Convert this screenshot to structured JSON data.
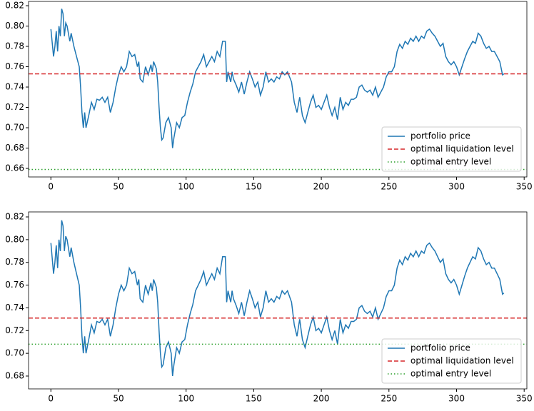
{
  "chart_data": [
    {
      "type": "line",
      "x": [
        0,
        2,
        3,
        4,
        5,
        6,
        7,
        8,
        9,
        10,
        11,
        12,
        14,
        15,
        17,
        19,
        21,
        22,
        23,
        24,
        25,
        26,
        28,
        30,
        32,
        34,
        36,
        38,
        40,
        42,
        44,
        46,
        48,
        50,
        52,
        54,
        56,
        58,
        60,
        62,
        64,
        65,
        66,
        68,
        70,
        72,
        74,
        75,
        76,
        78,
        79,
        80,
        81,
        82,
        83,
        85,
        87,
        89,
        90,
        91,
        93,
        95,
        97,
        99,
        101,
        103,
        105,
        107,
        109,
        111,
        113,
        115,
        117,
        119,
        121,
        123,
        125,
        127,
        129,
        130,
        131,
        133,
        134,
        135,
        137,
        139,
        141,
        143,
        145,
        147,
        149,
        151,
        153,
        155,
        157,
        159,
        161,
        163,
        165,
        167,
        169,
        171,
        173,
        175,
        178,
        180,
        182,
        184,
        186,
        188,
        190,
        192,
        194,
        196,
        198,
        200,
        202,
        204,
        206,
        208,
        210,
        212,
        214,
        216,
        218,
        220,
        222,
        224,
        226,
        228,
        230,
        232,
        234,
        236,
        238,
        240,
        242,
        244,
        246,
        248,
        250,
        252,
        254,
        256,
        258,
        260,
        262,
        264,
        266,
        268,
        270,
        272,
        274,
        276,
        278,
        280,
        282,
        284,
        286,
        288,
        290,
        292,
        294,
        296,
        298,
        300,
        302,
        304,
        306,
        308,
        310,
        312,
        314,
        316,
        318,
        320,
        322,
        324,
        326,
        328,
        330,
        332,
        334,
        335
      ],
      "series": [
        {
          "name": "portfolio price",
          "color": "#1f77b4",
          "values": [
            0.797,
            0.77,
            0.78,
            0.795,
            0.775,
            0.8,
            0.79,
            0.817,
            0.812,
            0.79,
            0.803,
            0.8,
            0.785,
            0.793,
            0.78,
            0.77,
            0.76,
            0.74,
            0.715,
            0.7,
            0.715,
            0.7,
            0.712,
            0.725,
            0.718,
            0.728,
            0.727,
            0.73,
            0.725,
            0.73,
            0.715,
            0.725,
            0.74,
            0.752,
            0.76,
            0.755,
            0.76,
            0.775,
            0.77,
            0.772,
            0.76,
            0.765,
            0.748,
            0.745,
            0.76,
            0.752,
            0.762,
            0.755,
            0.765,
            0.758,
            0.745,
            0.72,
            0.7,
            0.688,
            0.69,
            0.705,
            0.71,
            0.7,
            0.68,
            0.69,
            0.705,
            0.7,
            0.71,
            0.712,
            0.725,
            0.735,
            0.743,
            0.755,
            0.76,
            0.765,
            0.772,
            0.76,
            0.765,
            0.77,
            0.765,
            0.775,
            0.77,
            0.785,
            0.785,
            0.745,
            0.755,
            0.745,
            0.755,
            0.748,
            0.742,
            0.735,
            0.745,
            0.733,
            0.745,
            0.755,
            0.748,
            0.74,
            0.745,
            0.732,
            0.74,
            0.755,
            0.745,
            0.748,
            0.745,
            0.75,
            0.748,
            0.755,
            0.752,
            0.755,
            0.745,
            0.725,
            0.715,
            0.73,
            0.712,
            0.705,
            0.715,
            0.725,
            0.732,
            0.72,
            0.722,
            0.718,
            0.725,
            0.732,
            0.72,
            0.712,
            0.72,
            0.708,
            0.73,
            0.718,
            0.725,
            0.722,
            0.728,
            0.728,
            0.73,
            0.74,
            0.742,
            0.737,
            0.735,
            0.737,
            0.732,
            0.74,
            0.73,
            0.735,
            0.74,
            0.75,
            0.755,
            0.755,
            0.76,
            0.775,
            0.782,
            0.778,
            0.785,
            0.782,
            0.788,
            0.785,
            0.79,
            0.785,
            0.79,
            0.788,
            0.795,
            0.797,
            0.793,
            0.79,
            0.785,
            0.78,
            0.783,
            0.77,
            0.765,
            0.762,
            0.765,
            0.76,
            0.752,
            0.76,
            0.768,
            0.775,
            0.78,
            0.785,
            0.783,
            0.793,
            0.79,
            0.783,
            0.778,
            0.78,
            0.775,
            0.775,
            0.77,
            0.765,
            0.752,
            0.753
          ]
        }
      ],
      "hlines": [
        {
          "name": "optimal liquidation level",
          "color": "#d62728",
          "style": "dashed",
          "value": 0.753
        },
        {
          "name": "optimal entry level",
          "color": "#2ca02c",
          "style": "dotted",
          "value": 0.659
        }
      ],
      "xlim": [
        -16.5,
        352
      ],
      "ylim": [
        0.6516,
        0.8242
      ],
      "xticks": [
        0,
        50,
        100,
        150,
        200,
        250,
        300,
        350
      ],
      "yticks": [
        0.66,
        0.68,
        {
          "value": 0.7,
          "label": "0.70"
        },
        0.72,
        0.74,
        0.76,
        0.78,
        {
          "value": 0.8,
          "label": "0.80"
        },
        0.82
      ],
      "legend": "lower right"
    },
    {
      "type": "line",
      "x": [
        0,
        2,
        3,
        4,
        5,
        6,
        7,
        8,
        9,
        10,
        11,
        12,
        14,
        15,
        17,
        19,
        21,
        22,
        23,
        24,
        25,
        26,
        28,
        30,
        32,
        34,
        36,
        38,
        40,
        42,
        44,
        46,
        48,
        50,
        52,
        54,
        56,
        58,
        60,
        62,
        64,
        65,
        66,
        68,
        70,
        72,
        74,
        75,
        76,
        78,
        79,
        80,
        81,
        82,
        83,
        85,
        87,
        89,
        90,
        91,
        93,
        95,
        97,
        99,
        101,
        103,
        105,
        107,
        109,
        111,
        113,
        115,
        117,
        119,
        121,
        123,
        125,
        127,
        129,
        130,
        131,
        133,
        134,
        135,
        137,
        139,
        141,
        143,
        145,
        147,
        149,
        151,
        153,
        155,
        157,
        159,
        161,
        163,
        165,
        167,
        169,
        171,
        173,
        175,
        178,
        180,
        182,
        184,
        186,
        188,
        190,
        192,
        194,
        196,
        198,
        200,
        202,
        204,
        206,
        208,
        210,
        212,
        214,
        216,
        218,
        220,
        222,
        224,
        226,
        228,
        230,
        232,
        234,
        236,
        238,
        240,
        242,
        244,
        246,
        248,
        250,
        252,
        254,
        256,
        258,
        260,
        262,
        264,
        266,
        268,
        270,
        272,
        274,
        276,
        278,
        280,
        282,
        284,
        286,
        288,
        290,
        292,
        294,
        296,
        298,
        300,
        302,
        304,
        306,
        308,
        310,
        312,
        314,
        316,
        318,
        320,
        322,
        324,
        326,
        328,
        330,
        332,
        334,
        335
      ],
      "series": [
        {
          "name": "portfolio price",
          "color": "#1f77b4",
          "values": [
            0.797,
            0.77,
            0.78,
            0.795,
            0.775,
            0.8,
            0.79,
            0.817,
            0.812,
            0.79,
            0.803,
            0.8,
            0.785,
            0.793,
            0.78,
            0.77,
            0.76,
            0.74,
            0.715,
            0.7,
            0.715,
            0.7,
            0.712,
            0.725,
            0.718,
            0.728,
            0.727,
            0.73,
            0.725,
            0.73,
            0.715,
            0.725,
            0.74,
            0.752,
            0.76,
            0.755,
            0.76,
            0.775,
            0.77,
            0.772,
            0.76,
            0.765,
            0.748,
            0.745,
            0.76,
            0.752,
            0.762,
            0.755,
            0.765,
            0.758,
            0.745,
            0.72,
            0.7,
            0.688,
            0.69,
            0.705,
            0.71,
            0.7,
            0.68,
            0.69,
            0.705,
            0.7,
            0.71,
            0.712,
            0.725,
            0.735,
            0.743,
            0.755,
            0.76,
            0.765,
            0.772,
            0.76,
            0.765,
            0.77,
            0.765,
            0.775,
            0.77,
            0.785,
            0.785,
            0.745,
            0.755,
            0.745,
            0.755,
            0.748,
            0.742,
            0.735,
            0.745,
            0.733,
            0.745,
            0.755,
            0.748,
            0.74,
            0.745,
            0.732,
            0.74,
            0.755,
            0.745,
            0.748,
            0.745,
            0.75,
            0.748,
            0.755,
            0.752,
            0.755,
            0.745,
            0.725,
            0.715,
            0.73,
            0.712,
            0.705,
            0.715,
            0.725,
            0.732,
            0.72,
            0.722,
            0.718,
            0.725,
            0.732,
            0.72,
            0.712,
            0.72,
            0.708,
            0.73,
            0.718,
            0.725,
            0.722,
            0.728,
            0.728,
            0.73,
            0.74,
            0.742,
            0.737,
            0.735,
            0.737,
            0.732,
            0.74,
            0.73,
            0.735,
            0.74,
            0.75,
            0.755,
            0.755,
            0.76,
            0.775,
            0.782,
            0.778,
            0.785,
            0.782,
            0.788,
            0.785,
            0.79,
            0.785,
            0.79,
            0.788,
            0.795,
            0.797,
            0.793,
            0.79,
            0.785,
            0.78,
            0.783,
            0.77,
            0.765,
            0.762,
            0.765,
            0.76,
            0.752,
            0.76,
            0.768,
            0.775,
            0.78,
            0.785,
            0.783,
            0.793,
            0.79,
            0.783,
            0.778,
            0.78,
            0.775,
            0.775,
            0.77,
            0.765,
            0.752,
            0.753
          ]
        }
      ],
      "hlines": [
        {
          "name": "optimal liquidation level",
          "color": "#d62728",
          "style": "dashed",
          "value": 0.731
        },
        {
          "name": "optimal entry level",
          "color": "#2ca02c",
          "style": "dotted",
          "value": 0.708
        }
      ],
      "xlim": [
        -16.5,
        352
      ],
      "ylim": [
        0.6687,
        0.8244
      ],
      "xticks": [
        0,
        50,
        100,
        150,
        200,
        250,
        300,
        350
      ],
      "yticks": [
        0.68,
        {
          "value": 0.7,
          "label": "0.70"
        },
        0.72,
        0.74,
        0.76,
        0.78,
        {
          "value": 0.8,
          "label": "0.80"
        },
        0.82
      ],
      "legend": "lower right"
    }
  ]
}
